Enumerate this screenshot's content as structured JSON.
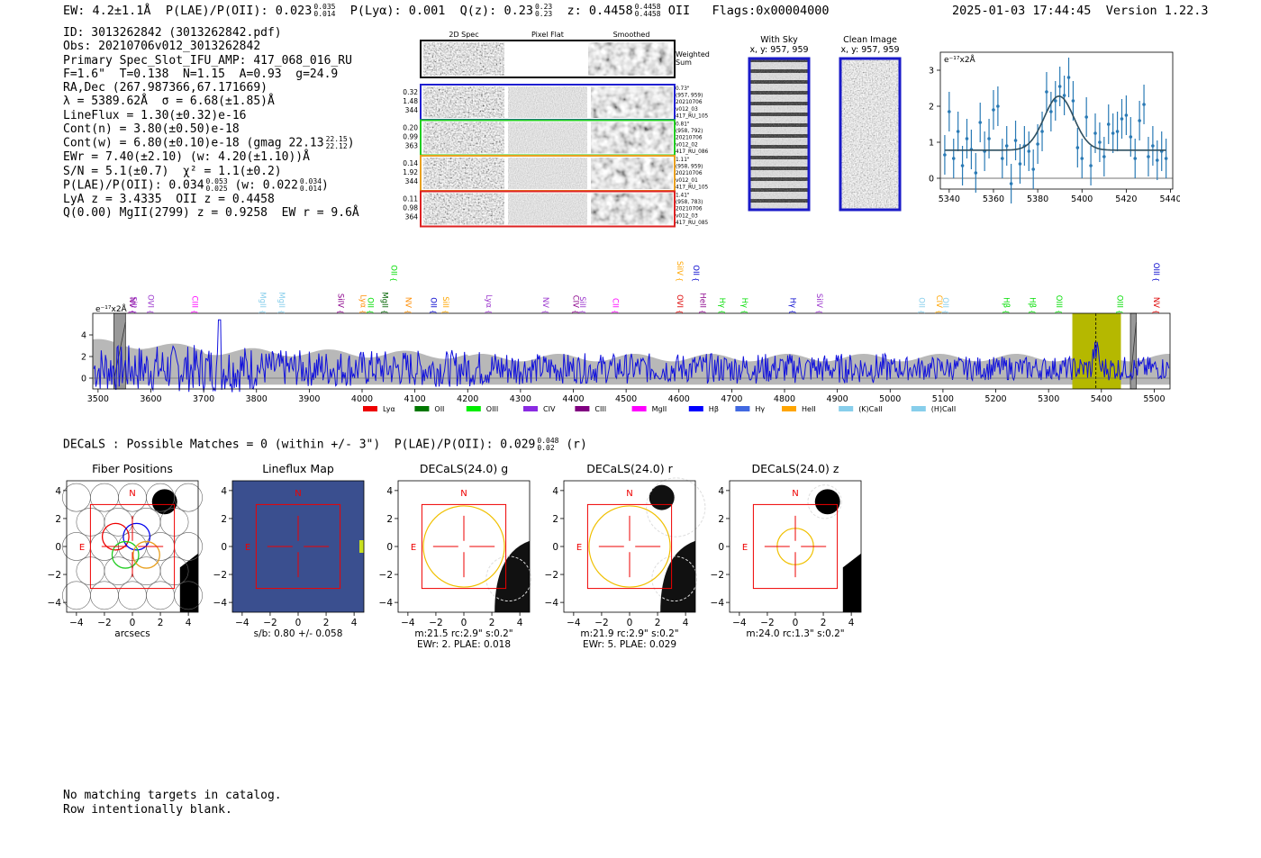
{
  "header": {
    "ew": "EW: 4.2±1.1Å",
    "plae_label": "P(LAE)/P(OII): 0.023",
    "plae_hi": "0.035",
    "plae_lo": "0.014",
    "plya": "P(Lyα): 0.001",
    "q_label": "Q(z): 0.23",
    "q_hi": "0.23",
    "q_lo": "0.23",
    "z_label": "z: 0.4458",
    "z_hi": "0.4458",
    "z_lo": "0.4458",
    "z_line": "OII",
    "flags": "Flags:0x00004000",
    "timestamp": "2025-01-03 17:44:45",
    "version": "Version 1.22.3"
  },
  "info": {
    "id": "ID: 3013262842 (3013262842.pdf)",
    "obs": "Obs: 20210706v012_3013262842",
    "primary": "Primary Spec_Slot_IFU_AMP: 417_068_016_RU",
    "fit": "F=1.6\"  T=0.138  N=1.15  A=0.93  g=24.9",
    "radec": "RA,Dec (267.987366,67.171669)",
    "lambda": "λ = 5389.62Å  σ = 6.68(±1.85)Å",
    "lineflux": "LineFlux = 1.30(±0.32)e-16",
    "contn": "Cont(n) = 3.80(±0.50)e-18",
    "contw": "Cont(w) = 6.80(±0.10)e-18 (gmag 22.13",
    "contw_hi": "22.15",
    "contw_lo": "22.12",
    "ewr": "EWr = 7.40(±2.10) (w: 4.20(±1.10))Å",
    "sn": "S/N = 5.1(±0.7)  χ² = 1.1(±0.2)",
    "plae": "P(LAE)/P(OII): 0.034",
    "plae_hi": "0.053",
    "plae_lo": "0.025",
    "plae_w": "(w: 0.022",
    "plae_w_hi": "0.034",
    "plae_w_lo": "0.014",
    "lya_z": "LyA z = 3.4335  OII z = 0.4458",
    "q": "Q(0.00) MgII(2799) z = 0.9258  EW r = 9.6Å"
  },
  "cutouts": {
    "col_2d": "2D Spec",
    "col_flat": "Pixel Flat",
    "col_smooth": "Smoothed",
    "weighted": "Weighted",
    "sum": "Sum",
    "rows": [
      {
        "left1": "0.32",
        "left2": "1.48",
        "left3": "344",
        "r1": "0.73\"",
        "r2": "(957, 959)",
        "r3": "20210706",
        "r4": "v012_03",
        "r5": "417_RU_105",
        "color": "#1f1fd0"
      },
      {
        "left1": "0.20",
        "left2": "0.99",
        "left3": "363",
        "r1": "0.81\"",
        "r2": "(958, 792)",
        "r3": "20210706",
        "r4": "v012_02",
        "r5": "417_RU_086",
        "color": "#22cc22"
      },
      {
        "left1": "0.14",
        "left2": "1.92",
        "left3": "344",
        "r1": "1.11\"",
        "r2": "(958, 959)",
        "r3": "20210706",
        "r4": "v012_01",
        "r5": "417_RU_105",
        "color": "#e8a020"
      },
      {
        "left1": "0.11",
        "left2": "0.98",
        "left3": "364",
        "r1": "1.41\"",
        "r2": "(958, 783)",
        "r3": "20210706",
        "r4": "v012_03",
        "r5": "417_RU_085",
        "color": "#dd2222"
      }
    ]
  },
  "sky": {
    "title1": "With Sky",
    "sub1": "x, y: 957, 959",
    "title2": "Clean Image",
    "sub2": "x, y: 957, 959"
  },
  "zoom_chart": {
    "type": "scatter",
    "title": "",
    "unit_label": "e⁻¹⁷x2Å",
    "xlim": [
      5336,
      5441
    ],
    "ylim": [
      -0.3,
      3.5
    ],
    "xticks": [
      5340,
      5360,
      5380,
      5400,
      5420,
      5440
    ],
    "yticks": [
      0,
      1,
      2,
      3
    ],
    "gauss": {
      "center": 5389.62,
      "sigma": 6.68,
      "amp": 1.5,
      "cont": 0.78
    },
    "x": [
      5338,
      5340,
      5342,
      5344,
      5346,
      5348,
      5350,
      5352,
      5354,
      5356,
      5358,
      5360,
      5362,
      5364,
      5366,
      5368,
      5370,
      5372,
      5374,
      5376,
      5378,
      5380,
      5382,
      5384,
      5386,
      5388,
      5390,
      5392,
      5394,
      5396,
      5398,
      5400,
      5402,
      5404,
      5406,
      5408,
      5410,
      5412,
      5414,
      5416,
      5418,
      5420,
      5422,
      5424,
      5426,
      5428,
      5430,
      5432,
      5434,
      5436,
      5438
    ],
    "y": [
      0.65,
      1.85,
      0.55,
      1.3,
      0.35,
      1.1,
      0.8,
      0.15,
      1.55,
      0.75,
      1.1,
      1.9,
      2.0,
      0.55,
      0.9,
      -0.15,
      1.05,
      0.4,
      0.9,
      0.75,
      0.25,
      0.95,
      1.3,
      2.4,
      1.85,
      2.15,
      2.55,
      2.3,
      2.8,
      2.15,
      0.85,
      0.55,
      1.7,
      0.35,
      1.25,
      1.0,
      0.6,
      1.5,
      1.25,
      1.3,
      1.65,
      1.75,
      1.15,
      0.55,
      1.6,
      2.05,
      0.6,
      0.9,
      0.5,
      0.75,
      0.55
    ],
    "err": 0.55
  },
  "spectrum_chart": {
    "type": "line",
    "unit_label": "e⁻¹⁷x2Å",
    "xlim": [
      3490,
      5530
    ],
    "ylim": [
      -1,
      6
    ],
    "xticks": [
      3500,
      3600,
      3700,
      3800,
      3900,
      4000,
      4100,
      4200,
      4300,
      4400,
      4500,
      4600,
      4700,
      4800,
      4900,
      5000,
      5100,
      5200,
      5300,
      5400,
      5500
    ],
    "yticks": [
      0,
      2,
      4
    ],
    "highlight": {
      "from": 5345,
      "to": 5437,
      "center": 5389.62
    },
    "masks": [
      [
        3530,
        3552
      ],
      [
        5455,
        5466
      ]
    ],
    "lines": [
      {
        "name": "NV",
        "wave": 3555,
        "color": "#8b008b",
        "row": 2
      },
      {
        "name": "SiII",
        "wave": 3557,
        "color": "#9932cc",
        "row": 2
      },
      {
        "name": "OVI",
        "wave": 3590,
        "color": "#9932cc",
        "row": 2
      },
      {
        "name": "CIII",
        "wave": 3673,
        "color": "#ff00ff",
        "row": 2
      },
      {
        "name": "MgII",
        "wave": 3802,
        "color": "#87ceeb",
        "row": 2
      },
      {
        "name": "MgII",
        "wave": 3838,
        "color": "#87ceeb",
        "row": 2
      },
      {
        "name": "SiIV",
        "wave": 3950,
        "color": "#8b008b",
        "row": 2
      },
      {
        "name": "Lyα",
        "wave": 3992,
        "color": "#ff8c00",
        "row": 2
      },
      {
        "name": "OII",
        "wave": 4006,
        "color": "#00dd00",
        "row": 2
      },
      {
        "name": "MgII",
        "wave": 4033,
        "color": "#006400",
        "row": 2
      },
      {
        "name": "OII",
        "wave": 4050,
        "color": "#00dd00",
        "row": 1
      },
      {
        "name": "NV",
        "wave": 4078,
        "color": "#ff8c00",
        "row": 2
      },
      {
        "name": "OII",
        "wave": 4125,
        "color": "#0000cd",
        "row": 2
      },
      {
        "name": "SiII",
        "wave": 4148,
        "color": "#ffa500",
        "row": 2
      },
      {
        "name": "Lyα",
        "wave": 4230,
        "color": "#9932cc",
        "row": 2
      },
      {
        "name": "NV",
        "wave": 4338,
        "color": "#9932cc",
        "row": 2
      },
      {
        "name": "CIV",
        "wave": 4395,
        "color": "#8b008b",
        "row": 2
      },
      {
        "name": "SiII",
        "wave": 4408,
        "color": "#9932cc",
        "row": 2
      },
      {
        "name": "CII",
        "wave": 4470,
        "color": "#ff00ff",
        "row": 2
      },
      {
        "name": "OVI",
        "wave": 4592,
        "color": "#dd0000",
        "row": 2
      },
      {
        "name": "SiIV",
        "wave": 4592,
        "color": "#ffa500",
        "row": 1
      },
      {
        "name": "HeII",
        "wave": 4635,
        "color": "#8b008b",
        "row": 2
      },
      {
        "name": "OII",
        "wave": 4623,
        "color": "#0000cd",
        "row": 1
      },
      {
        "name": "Hγ",
        "wave": 4672,
        "color": "#00dd00",
        "row": 2
      },
      {
        "name": "Hγ",
        "wave": 4715,
        "color": "#00dd00",
        "row": 2
      },
      {
        "name": "Hγ",
        "wave": 4806,
        "color": "#0000cd",
        "row": 2
      },
      {
        "name": "SiIV",
        "wave": 4856,
        "color": "#9932cc",
        "row": 2
      },
      {
        "name": "OII",
        "wave": 5050,
        "color": "#87ceeb",
        "row": 2
      },
      {
        "name": "CIV",
        "wave": 5083,
        "color": "#ffa500",
        "row": 2
      },
      {
        "name": "OII",
        "wave": 5095,
        "color": "#87ceeb",
        "row": 2
      },
      {
        "name": "Hβ",
        "wave": 5210,
        "color": "#00dd00",
        "row": 2
      },
      {
        "name": "Hβ",
        "wave": 5260,
        "color": "#00dd00",
        "row": 2
      },
      {
        "name": "OIII",
        "wave": 5310,
        "color": "#00dd00",
        "row": 2
      },
      {
        "name": "OIII",
        "wave": 5425,
        "color": "#00dd00",
        "row": 2
      },
      {
        "name": "NV",
        "wave": 5494,
        "color": "#dd0000",
        "row": 2
      },
      {
        "name": "OIII",
        "wave": 5494,
        "color": "#0000cd",
        "row": 1
      }
    ],
    "legend": [
      {
        "label": "Lyα",
        "color": "#ee0000"
      },
      {
        "label": "OII",
        "color": "#007700"
      },
      {
        "label": "OIII",
        "color": "#00ee00"
      },
      {
        "label": "CIV",
        "color": "#8a2be2"
      },
      {
        "label": "CIII",
        "color": "#800080"
      },
      {
        "label": "MgII",
        "color": "#ff00ff"
      },
      {
        "label": "Hβ",
        "color": "#0000ff"
      },
      {
        "label": "Hγ",
        "color": "#4169e1"
      },
      {
        "label": "HeII",
        "color": "#ffa500"
      },
      {
        "label": "(K)CaII",
        "color": "#87ceeb"
      },
      {
        "label": "(H)CaII",
        "color": "#87ceeb"
      }
    ]
  },
  "decals": {
    "title": "DECaLS : Possible Matches = 0 (within +/- 3\")  P(LAE)/P(OII): 0.029",
    "hi": "0.048",
    "lo": "0.02",
    "band": "(r)",
    "axis_ticks": [
      "-4",
      "-2",
      "0",
      "2",
      "4"
    ],
    "panels": [
      {
        "title": "Fiber Positions",
        "line1": "arcsecs",
        "line2": ""
      },
      {
        "title": "Lineflux Map",
        "line1": "s/b: 0.80 +/- 0.058",
        "line2": ""
      },
      {
        "title": "DECaLS(24.0) g",
        "line1": "m:21.5 rc:2.9\"  s:0.2\"",
        "line2": "EWr: 2. PLAE: 0.018"
      },
      {
        "title": "DECaLS(24.0) r",
        "line1": "m:21.9 rc:2.9\"  s:0.2\"",
        "line2": "EWr: 5. PLAE: 0.029"
      },
      {
        "title": "DECaLS(24.0) z",
        "line1": "m:24.0 rc:1.3\"  s:0.2\"",
        "line2": ""
      }
    ],
    "compass_n": "N",
    "compass_e": "E"
  },
  "footer": {
    "line1": "No matching targets in catalog.",
    "line2": "Row intentionally blank."
  }
}
